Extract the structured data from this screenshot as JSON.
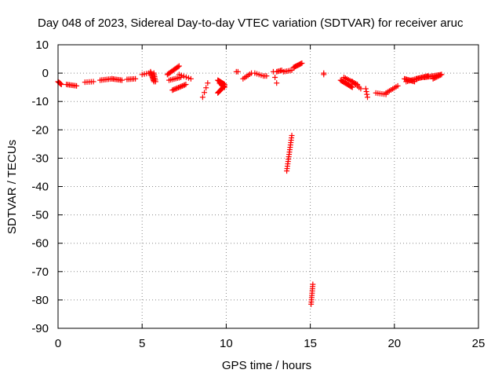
{
  "chart_data": {
    "type": "scatter",
    "title": "Day 048 of 2023, Sidereal Day-to-day VTEC variation (SDTVAR) for receiver aruc",
    "xlabel": "GPS time / hours",
    "ylabel": "SDTVAR / TECUs",
    "xlim": [
      0,
      25
    ],
    "ylim": [
      -90,
      10
    ],
    "xticks": [
      "0",
      "5",
      "10",
      "15",
      "20",
      "25"
    ],
    "yticks": [
      "10",
      "0",
      "-10",
      "-20",
      "-30",
      "-40",
      "-50",
      "-60",
      "-70",
      "-80",
      "-90"
    ],
    "grid": true,
    "marker": "+",
    "color": "#ff0000",
    "segments": [
      {
        "x0": 0.0,
        "x1": 0.2,
        "y0": -3.0,
        "y1": -4.0,
        "n": 6
      },
      {
        "x0": 0.5,
        "x1": 1.1,
        "y0": -4.0,
        "y1": -4.5,
        "n": 8
      },
      {
        "x0": 1.6,
        "x1": 2.1,
        "y0": -3.2,
        "y1": -3.0,
        "n": 5
      },
      {
        "x0": 2.5,
        "x1": 3.2,
        "y0": -2.5,
        "y1": -2.0,
        "n": 8
      },
      {
        "x0": 3.2,
        "x1": 3.8,
        "y0": -2.0,
        "y1": -2.5,
        "n": 8
      },
      {
        "x0": 4.1,
        "x1": 4.6,
        "y0": -2.2,
        "y1": -2.0,
        "n": 6
      },
      {
        "x0": 5.0,
        "x1": 5.4,
        "y0": -0.5,
        "y1": 0.0,
        "n": 4
      },
      {
        "x0": 5.5,
        "x1": 5.7,
        "y0": 0.5,
        "y1": -3.0,
        "n": 10
      },
      {
        "x0": 5.7,
        "x1": 5.8,
        "y0": 0.0,
        "y1": -3.0,
        "n": 6
      },
      {
        "x0": 6.5,
        "x1": 7.2,
        "y0": -0.5,
        "y1": 2.5,
        "n": 12
      },
      {
        "x0": 6.6,
        "x1": 7.3,
        "y0": -2.5,
        "y1": -1.5,
        "n": 8
      },
      {
        "x0": 6.8,
        "x1": 7.6,
        "y0": -6.0,
        "y1": -4.0,
        "n": 12
      },
      {
        "x0": 7.2,
        "x1": 7.9,
        "y0": -0.5,
        "y1": -2.0,
        "n": 6
      },
      {
        "x0": 8.6,
        "x1": 8.9,
        "y0": -8.5,
        "y1": -3.5,
        "n": 4
      },
      {
        "x0": 9.5,
        "x1": 9.9,
        "y0": -2.5,
        "y1": -4.0,
        "n": 12
      },
      {
        "x0": 9.5,
        "x1": 9.9,
        "y0": -7.0,
        "y1": -4.5,
        "n": 12
      },
      {
        "x0": 9.6,
        "x1": 9.9,
        "y0": -3.5,
        "y1": -5.0,
        "n": 6
      },
      {
        "x0": 10.6,
        "x1": 10.7,
        "y0": 0.5,
        "y1": 0.5,
        "n": 2
      },
      {
        "x0": 11.0,
        "x1": 11.5,
        "y0": -2.0,
        "y1": 0.0,
        "n": 6
      },
      {
        "x0": 11.7,
        "x1": 12.2,
        "y0": 0.0,
        "y1": -1.0,
        "n": 5
      },
      {
        "x0": 12.3,
        "x1": 12.4,
        "y0": -1.0,
        "y1": -1.0,
        "n": 2
      },
      {
        "x0": 12.8,
        "x1": 13.0,
        "y0": 0.5,
        "y1": -3.5,
        "n": 3
      },
      {
        "x0": 13.0,
        "x1": 13.3,
        "y0": 0.5,
        "y1": 1.0,
        "n": 5
      },
      {
        "x0": 13.4,
        "x1": 13.9,
        "y0": 0.5,
        "y1": 1.0,
        "n": 6
      },
      {
        "x0": 14.0,
        "x1": 14.5,
        "y0": 2.0,
        "y1": 3.5,
        "n": 10
      },
      {
        "x0": 13.6,
        "x1": 13.9,
        "y0": -34.5,
        "y1": -22.0,
        "n": 16
      },
      {
        "x0": 15.05,
        "x1": 15.15,
        "y0": -81.5,
        "y1": -74.5,
        "n": 10
      },
      {
        "x0": 15.8,
        "x1": 15.8,
        "y0": -0.5,
        "y1": 0.0,
        "n": 2
      },
      {
        "x0": 16.8,
        "x1": 17.5,
        "y0": -2.5,
        "y1": -5.0,
        "n": 14
      },
      {
        "x0": 17.0,
        "x1": 17.8,
        "y0": -1.5,
        "y1": -4.0,
        "n": 10
      },
      {
        "x0": 17.5,
        "x1": 18.0,
        "y0": -3.0,
        "y1": -5.5,
        "n": 6
      },
      {
        "x0": 18.3,
        "x1": 18.4,
        "y0": -5.5,
        "y1": -8.5,
        "n": 4
      },
      {
        "x0": 18.9,
        "x1": 19.5,
        "y0": -7.0,
        "y1": -7.5,
        "n": 6
      },
      {
        "x0": 19.5,
        "x1": 20.2,
        "y0": -7.0,
        "y1": -4.5,
        "n": 8
      },
      {
        "x0": 20.6,
        "x1": 21.2,
        "y0": -2.0,
        "y1": -3.0,
        "n": 10
      },
      {
        "x0": 20.7,
        "x1": 21.3,
        "y0": -3.0,
        "y1": -2.0,
        "n": 8
      },
      {
        "x0": 21.3,
        "x1": 22.0,
        "y0": -2.0,
        "y1": -1.0,
        "n": 12
      },
      {
        "x0": 21.8,
        "x1": 22.8,
        "y0": -1.5,
        "y1": -0.5,
        "n": 14
      },
      {
        "x0": 22.3,
        "x1": 22.8,
        "y0": -2.0,
        "y1": -0.5,
        "n": 8
      }
    ]
  }
}
